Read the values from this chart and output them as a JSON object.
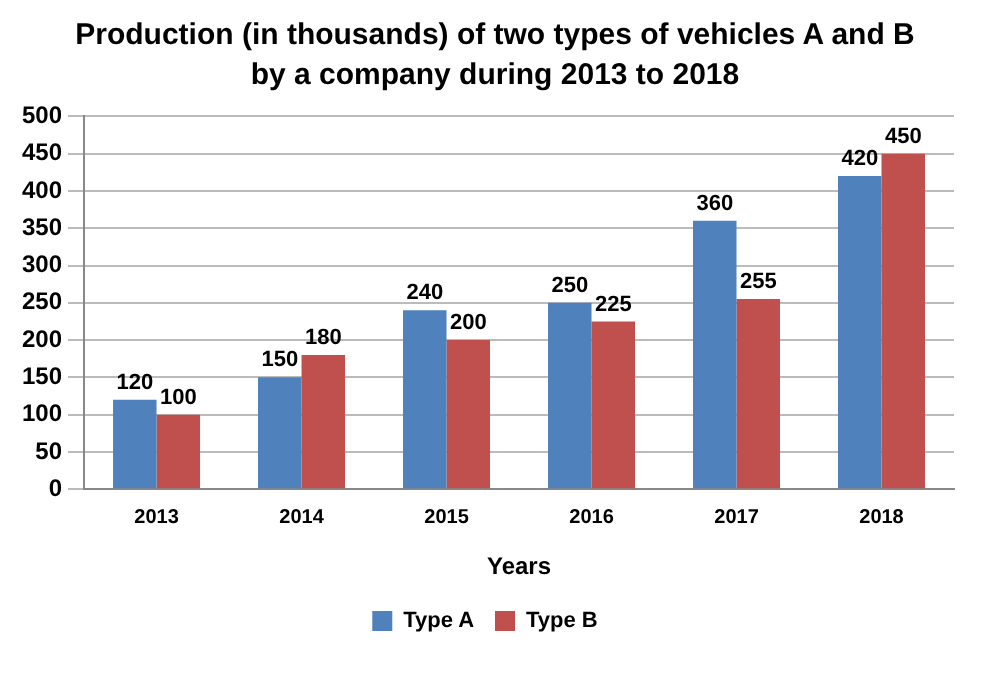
{
  "chart_data": {
    "type": "bar",
    "title": "Production (in thousands) of two types of vehicles A and B by a company during 2013 to 2018",
    "xlabel": "Years",
    "categories": [
      "2013",
      "2014",
      "2015",
      "2016",
      "2017",
      "2018"
    ],
    "series": [
      {
        "name": "Type A",
        "color": "#4f81bd",
        "values": [
          120,
          150,
          240,
          250,
          360,
          420
        ]
      },
      {
        "name": "Type B",
        "color": "#c0504d",
        "values": [
          100,
          180,
          200,
          225,
          255,
          450
        ]
      }
    ],
    "ylim": [
      0,
      500
    ],
    "yticks": [
      0,
      50,
      100,
      150,
      200,
      250,
      300,
      350,
      400,
      450,
      500
    ],
    "grid": "y",
    "legend": "bottom",
    "data_labels": true
  }
}
